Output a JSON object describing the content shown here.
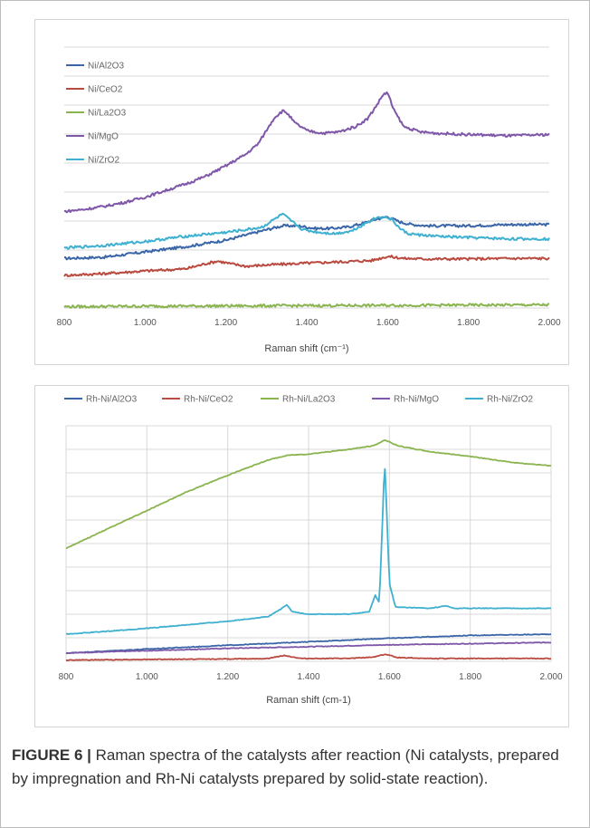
{
  "caption": {
    "label": "FIGURE 6 |",
    "text": "Raman spectra of the catalysts after reaction (Ni catalysts, prepared by impregnation and Rh-Ni catalysts prepared by solid-state reaction)."
  },
  "chart_data": [
    {
      "type": "line",
      "title": "",
      "xlabel": "Raman shift (cm⁻¹)",
      "ylabel": "",
      "xlim": [
        800,
        2000
      ],
      "ylim": [
        0,
        10
      ],
      "grid": "horizontal",
      "legend_position": "top-left",
      "xticks": [
        800,
        1000,
        1200,
        1400,
        1600,
        1800,
        2000
      ],
      "xtick_labels": [
        "800",
        "1.000",
        "1.200",
        "1.400",
        "1.600",
        "1.800",
        "2.000"
      ],
      "series": [
        {
          "name": "Ni/Al2O3",
          "color": "#3a66a8",
          "x": [
            800,
            900,
            1000,
            1100,
            1200,
            1250,
            1300,
            1340,
            1380,
            1420,
            1460,
            1500,
            1540,
            1570,
            1600,
            1630,
            1660,
            1700,
            1800,
            1900,
            2000
          ],
          "y": [
            1.9,
            1.95,
            2.15,
            2.35,
            2.6,
            2.8,
            3.0,
            3.15,
            3.15,
            3.05,
            3.05,
            3.1,
            3.25,
            3.4,
            3.5,
            3.3,
            3.2,
            3.15,
            3.15,
            3.2,
            3.2
          ]
        },
        {
          "name": "Ni/CeO2",
          "color": "#b94a40",
          "x": [
            800,
            900,
            1000,
            1100,
            1150,
            1180,
            1210,
            1250,
            1300,
            1400,
            1500,
            1560,
            1600,
            1640,
            1700,
            1800,
            1900,
            2000
          ],
          "y": [
            1.25,
            1.32,
            1.42,
            1.5,
            1.7,
            1.8,
            1.7,
            1.6,
            1.65,
            1.72,
            1.78,
            1.82,
            1.98,
            1.9,
            1.88,
            1.88,
            1.9,
            1.9
          ]
        },
        {
          "name": "Ni/La2O3",
          "color": "#8ab44f",
          "x": [
            800,
            1000,
            1200,
            1400,
            1600,
            1800,
            2000
          ],
          "y": [
            0.05,
            0.07,
            0.08,
            0.09,
            0.1,
            0.11,
            0.12
          ]
        },
        {
          "name": "Ni/MgO",
          "color": "#7e57a8",
          "x": [
            800,
            850,
            900,
            950,
            1000,
            1050,
            1100,
            1150,
            1200,
            1250,
            1280,
            1300,
            1320,
            1340,
            1350,
            1370,
            1400,
            1440,
            1480,
            1520,
            1550,
            1570,
            1590,
            1600,
            1615,
            1640,
            1680,
            1720,
            1800,
            1900,
            2000
          ],
          "y": [
            3.7,
            3.78,
            3.9,
            4.05,
            4.25,
            4.5,
            4.75,
            5.05,
            5.45,
            5.9,
            6.3,
            6.8,
            7.3,
            7.55,
            7.5,
            7.1,
            6.8,
            6.7,
            6.75,
            6.95,
            7.25,
            7.7,
            8.2,
            8.25,
            7.6,
            6.95,
            6.75,
            6.7,
            6.65,
            6.6,
            6.65
          ]
        },
        {
          "name": "Ni/ZrO2",
          "color": "#3fb0cf",
          "x": [
            800,
            900,
            1000,
            1100,
            1200,
            1250,
            1290,
            1320,
            1340,
            1360,
            1390,
            1430,
            1470,
            1510,
            1540,
            1570,
            1590,
            1610,
            1630,
            1650,
            1680,
            1720,
            1800,
            1900,
            2000
          ],
          "y": [
            2.3,
            2.4,
            2.55,
            2.75,
            2.9,
            3.0,
            3.1,
            3.4,
            3.6,
            3.35,
            3.0,
            2.9,
            2.85,
            2.95,
            3.2,
            3.45,
            3.5,
            3.4,
            3.05,
            2.85,
            2.8,
            2.75,
            2.7,
            2.65,
            2.65
          ]
        }
      ]
    },
    {
      "type": "line",
      "title": "",
      "xlabel": "Raman shift (cm-1)",
      "ylabel": "",
      "xlim": [
        800,
        2000
      ],
      "ylim": [
        0,
        10
      ],
      "grid": "horizontal and vertical",
      "legend_position": "top",
      "xticks": [
        800,
        1000,
        1200,
        1400,
        1600,
        1800,
        2000
      ],
      "xtick_labels": [
        "800",
        "1.000",
        "1.200",
        "1.400",
        "1.600",
        "1.800",
        "2.000"
      ],
      "series": [
        {
          "name": "Rh-Ni/Al2O3",
          "color": "#3a66a8",
          "x": [
            800,
            1000,
            1200,
            1400,
            1600,
            1800,
            2000
          ],
          "y": [
            0.35,
            0.52,
            0.68,
            0.83,
            0.98,
            1.1,
            1.15
          ]
        },
        {
          "name": "Rh-Ni/CeO2",
          "color": "#b94a40",
          "x": [
            800,
            1000,
            1200,
            1300,
            1340,
            1380,
            1500,
            1560,
            1590,
            1620,
            1700,
            2000
          ],
          "y": [
            0.05,
            0.08,
            0.1,
            0.12,
            0.25,
            0.12,
            0.12,
            0.18,
            0.3,
            0.16,
            0.12,
            0.12
          ]
        },
        {
          "name": "Rh-Ni/La2O3",
          "color": "#8ab44f",
          "x": [
            800,
            900,
            1000,
            1100,
            1200,
            1300,
            1350,
            1400,
            1500,
            1560,
            1590,
            1620,
            1700,
            1800,
            1900,
            2000
          ],
          "y": [
            4.8,
            5.6,
            6.4,
            7.2,
            7.9,
            8.55,
            8.75,
            8.8,
            9.0,
            9.15,
            9.4,
            9.15,
            8.9,
            8.7,
            8.45,
            8.3
          ]
        },
        {
          "name": "Rh-Ni/MgO",
          "color": "#7e57a8",
          "x": [
            800,
            1000,
            1200,
            1400,
            1600,
            1800,
            2000
          ],
          "y": [
            0.35,
            0.45,
            0.55,
            0.62,
            0.7,
            0.75,
            0.8
          ]
        },
        {
          "name": "Rh-Ni/ZrO2",
          "color": "#3fb0cf",
          "x": [
            800,
            1000,
            1200,
            1300,
            1330,
            1345,
            1360,
            1400,
            1500,
            1550,
            1565,
            1575,
            1583,
            1588,
            1593,
            1600,
            1615,
            1700,
            1740,
            1760,
            1800,
            2000
          ],
          "y": [
            1.15,
            1.4,
            1.7,
            1.9,
            2.2,
            2.4,
            2.1,
            2.0,
            2.0,
            2.1,
            2.8,
            2.5,
            6.0,
            8.6,
            6.5,
            3.3,
            2.3,
            2.25,
            2.35,
            2.25,
            2.25,
            2.25
          ]
        }
      ]
    }
  ]
}
